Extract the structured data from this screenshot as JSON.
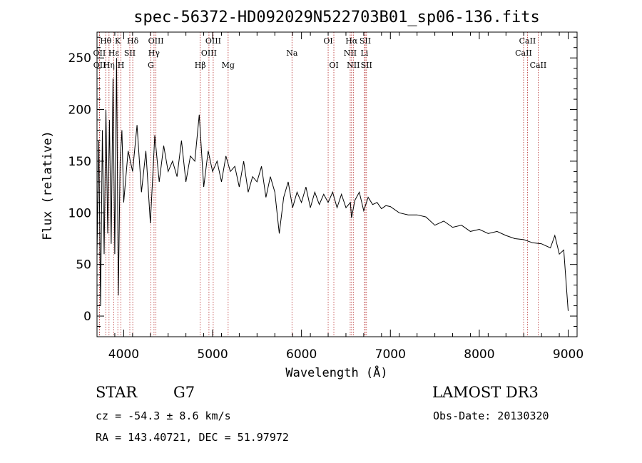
{
  "chart_data": {
    "type": "line",
    "title": "spec-56372-HD092029N522703B01_sp06-136.fits",
    "xlabel": "Wavelength (Å)",
    "ylabel": "Flux (relative)",
    "xlim": [
      3700,
      9100
    ],
    "ylim": [
      -20,
      275
    ],
    "xticks": [
      4000,
      5000,
      6000,
      7000,
      8000,
      9000
    ],
    "yticks": [
      0,
      50,
      100,
      150,
      200,
      250
    ],
    "series": [
      {
        "name": "flux",
        "x": [
          3700,
          3720,
          3740,
          3760,
          3780,
          3800,
          3820,
          3840,
          3860,
          3880,
          3900,
          3920,
          3940,
          3960,
          3980,
          4000,
          4050,
          4100,
          4150,
          4200,
          4250,
          4300,
          4350,
          4400,
          4450,
          4500,
          4550,
          4600,
          4650,
          4700,
          4750,
          4800,
          4850,
          4900,
          4950,
          5000,
          5050,
          5100,
          5150,
          5200,
          5250,
          5300,
          5350,
          5400,
          5450,
          5500,
          5550,
          5600,
          5650,
          5700,
          5750,
          5800,
          5850,
          5900,
          5950,
          6000,
          6050,
          6100,
          6150,
          6200,
          6250,
          6300,
          6350,
          6400,
          6450,
          6500,
          6550,
          6563,
          6600,
          6650,
          6700,
          6750,
          6800,
          6850,
          6900,
          6950,
          7000,
          7100,
          7200,
          7300,
          7400,
          7500,
          7600,
          7700,
          7800,
          7900,
          8000,
          8100,
          8200,
          8300,
          8400,
          8500,
          8600,
          8700,
          8800,
          8850,
          8900,
          8950,
          9000
        ],
        "y": [
          60,
          170,
          10,
          180,
          60,
          200,
          80,
          190,
          70,
          230,
          60,
          250,
          20,
          150,
          180,
          110,
          160,
          140,
          185,
          120,
          160,
          90,
          175,
          130,
          165,
          140,
          150,
          135,
          170,
          130,
          155,
          150,
          195,
          125,
          160,
          140,
          150,
          130,
          155,
          140,
          145,
          125,
          150,
          120,
          135,
          130,
          145,
          115,
          135,
          120,
          80,
          115,
          130,
          105,
          120,
          110,
          125,
          105,
          120,
          108,
          118,
          110,
          120,
          105,
          118,
          105,
          110,
          95,
          112,
          120,
          102,
          115,
          108,
          110,
          104,
          107,
          106,
          100,
          98,
          98,
          96,
          88,
          92,
          86,
          88,
          82,
          84,
          80,
          82,
          78,
          75,
          74,
          71,
          70,
          66,
          78,
          60,
          64,
          5
        ]
      }
    ],
    "lines": [
      {
        "label": "Hθ",
        "x": 3798,
        "row": 0
      },
      {
        "label": "K",
        "x": 3934,
        "row": 0
      },
      {
        "label": "Hδ",
        "x": 4102,
        "row": 0
      },
      {
        "label": "OIII",
        "x": 4363,
        "row": 0
      },
      {
        "label": "OIII",
        "x": 5007,
        "row": 0
      },
      {
        "label": "OI",
        "x": 6300,
        "row": 0
      },
      {
        "label": "Hα",
        "x": 6563,
        "row": 0
      },
      {
        "label": "SII",
        "x": 6717,
        "row": 0
      },
      {
        "label": "CaII",
        "x": 8542,
        "row": 0
      },
      {
        "label": "OII",
        "x": 3727,
        "row": 1
      },
      {
        "label": "Hε",
        "x": 3889,
        "row": 1
      },
      {
        "label": "SII",
        "x": 4069,
        "row": 1
      },
      {
        "label": "Hγ",
        "x": 4341,
        "row": 1
      },
      {
        "label": "OIII",
        "x": 4959,
        "row": 1
      },
      {
        "label": "Na",
        "x": 5893,
        "row": 1
      },
      {
        "label": "NII",
        "x": 6548,
        "row": 1
      },
      {
        "label": "Li",
        "x": 6708,
        "row": 1
      },
      {
        "label": "CaII",
        "x": 8498,
        "row": 1
      },
      {
        "label": "OII",
        "x": 3729,
        "row": 2
      },
      {
        "label": "Hη",
        "x": 3835,
        "row": 2
      },
      {
        "label": "H",
        "x": 3969,
        "row": 2
      },
      {
        "label": "G",
        "x": 4305,
        "row": 2
      },
      {
        "label": "Hβ",
        "x": 4861,
        "row": 2
      },
      {
        "label": "Mg",
        "x": 5175,
        "row": 2
      },
      {
        "label": "OI",
        "x": 6364,
        "row": 2
      },
      {
        "label": "NII",
        "x": 6583,
        "row": 2
      },
      {
        "label": "SII",
        "x": 6731,
        "row": 2
      },
      {
        "label": "CaII",
        "x": 8662,
        "row": 2
      }
    ]
  },
  "info": {
    "class": "STAR",
    "subclass": "G7",
    "cz": "cz = -54.3 ± 8.6 km/s",
    "radec": "RA = 143.40721, DEC =  51.97972",
    "survey": "LAMOST DR3",
    "obsdate": "Obs-Date: 20130320"
  },
  "colors": {
    "line_marker": "#b22222",
    "axes": "#000000"
  }
}
